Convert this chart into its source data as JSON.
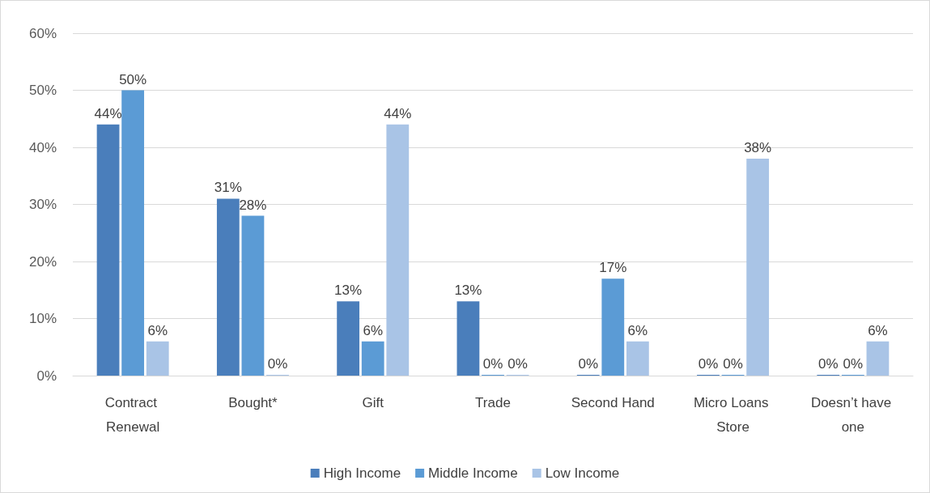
{
  "chart_data": {
    "type": "bar",
    "categories": [
      "Contract Renewal",
      "Bought*",
      "Gift",
      "Trade",
      "Second Hand",
      "Micro Loans Store",
      "Doesn’t have one"
    ],
    "series": [
      {
        "name": "High Income",
        "color": "#4a7ebb",
        "values": [
          44,
          31,
          13,
          13,
          0,
          0,
          0
        ],
        "value_labels": [
          "44%",
          "31%",
          "13%",
          "13%",
          "0%",
          "0%",
          "0%"
        ]
      },
      {
        "name": "Middle Income",
        "color": "#5b9bd5",
        "values": [
          50,
          28,
          6,
          0,
          17,
          0,
          0
        ],
        "value_labels": [
          "50%",
          "28%",
          "6%",
          "0%",
          "17%",
          "0%",
          "0%"
        ]
      },
      {
        "name": "Low Income",
        "color": "#a9c4e6",
        "values": [
          6,
          0,
          44,
          0,
          6,
          38,
          6
        ],
        "value_labels": [
          "6%",
          "0%",
          "44%",
          "0%",
          "6%",
          "38%",
          "6%"
        ]
      }
    ],
    "ylim": [
      0,
      60
    ],
    "yticks": [
      {
        "value": 0,
        "label": "0%"
      },
      {
        "value": 10,
        "label": "10%"
      },
      {
        "value": 20,
        "label": "20%"
      },
      {
        "value": 30,
        "label": "30%"
      },
      {
        "value": 40,
        "label": "40%"
      },
      {
        "value": 50,
        "label": "50%"
      },
      {
        "value": 60,
        "label": "60%"
      }
    ],
    "grid": "y",
    "legend": "bottom"
  }
}
